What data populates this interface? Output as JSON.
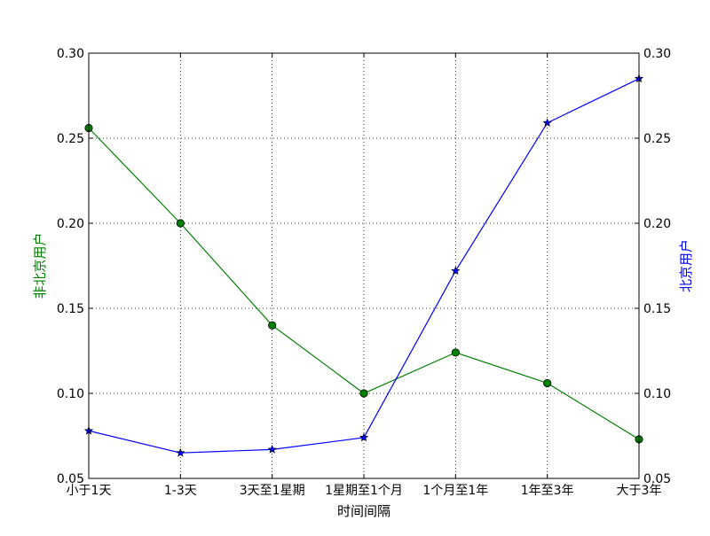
{
  "chart_data": {
    "type": "line",
    "categories": [
      "小于1天",
      "1-3天",
      "3天至1星期",
      "1星期至1个月",
      "1个月至1年",
      "1年至3年",
      "大于3年"
    ],
    "series": [
      {
        "name": "非北京用户",
        "axis": "left",
        "color": "#008000",
        "marker": "circle",
        "values": [
          0.256,
          0.2,
          0.14,
          0.1,
          0.124,
          0.106,
          0.073
        ]
      },
      {
        "name": "北京用户",
        "axis": "right",
        "color": "#0000ff",
        "marker": "star",
        "values": [
          0.078,
          0.065,
          0.067,
          0.074,
          0.172,
          0.259,
          0.285
        ]
      }
    ],
    "xlabel": "时间间隔",
    "ylabel_left": "非北京用户",
    "ylabel_right": "北京用户",
    "ylim": [
      0.05,
      0.3
    ],
    "yticks": [
      "0.05",
      "0.10",
      "0.15",
      "0.20",
      "0.25",
      "0.30"
    ],
    "grid": true
  }
}
